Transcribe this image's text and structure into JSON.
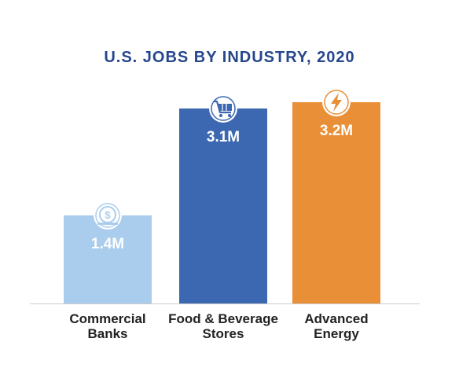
{
  "chart_data": {
    "type": "bar",
    "title": "U.S. JOBS BY INDUSTRY, 2020",
    "categories": [
      [
        "Commercial",
        "Banks"
      ],
      [
        "Food & Beverage",
        "Stores"
      ],
      [
        "Advanced",
        "Energy"
      ]
    ],
    "values": [
      1.4,
      3.1,
      3.2
    ],
    "value_labels": [
      "1.4M",
      "3.1M",
      "3.2M"
    ],
    "bar_colors": [
      "#aacdee",
      "#3c68b1",
      "#e98f37"
    ],
    "bar_icons": [
      "coin-icon",
      "cart-icon",
      "lightning-icon"
    ],
    "ylim": [
      0,
      3.6
    ],
    "grid": false,
    "legend": "none"
  },
  "colors": {
    "title": "#26478c",
    "baseline": "#cccccc",
    "value_label": "#ffffff"
  }
}
